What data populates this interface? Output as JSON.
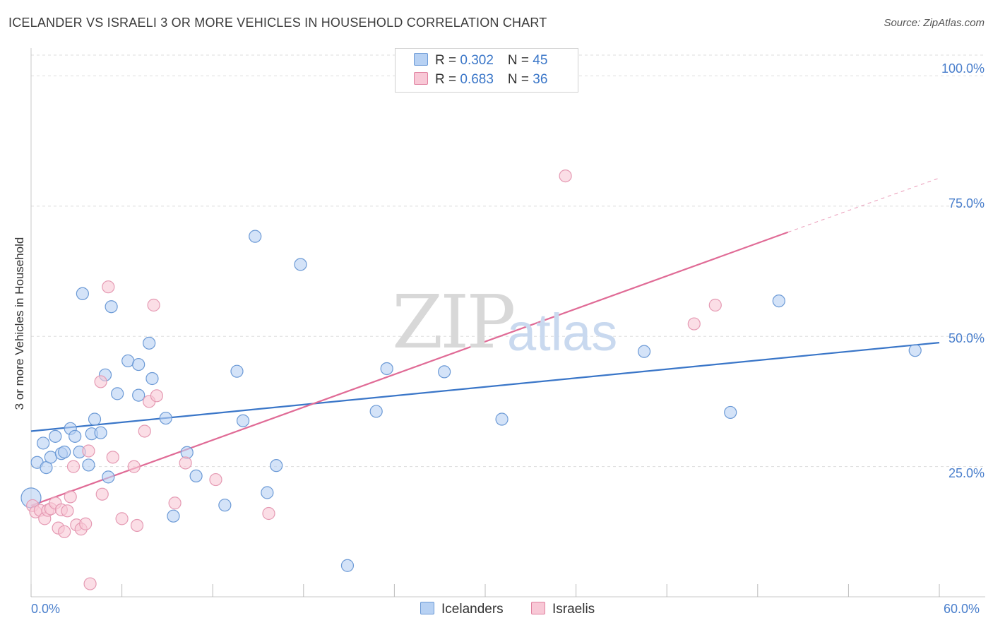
{
  "title": "ICELANDER VS ISRAELI 3 OR MORE VEHICLES IN HOUSEHOLD CORRELATION CHART",
  "source": "Source: ZipAtlas.com",
  "watermark": {
    "zip": "ZIP",
    "atlas": "atlas"
  },
  "legend": {
    "rows": [
      {
        "r_label": "R = ",
        "r_value": "0.302",
        "n_label": "N = ",
        "n_value": "45"
      },
      {
        "r_label": "R = ",
        "r_value": "0.683",
        "n_label": "N = ",
        "n_value": "36"
      }
    ]
  },
  "bottom_legend": {
    "blue": "Icelanders",
    "pink": "Israelis"
  },
  "colors": {
    "blue": "#3a76c8",
    "blue_fill": "#b7d1f3",
    "pink": "#e06b96",
    "pink_fill": "#f8c8d6",
    "grid": "#dddddd",
    "tick_text": "#4a7fcc"
  },
  "chart_data": {
    "type": "scatter",
    "title": "ICELANDER VS ISRAELI 3 OR MORE VEHICLES IN HOUSEHOLD CORRELATION CHART",
    "xlabel": "",
    "ylabel": "3 or more Vehicles in Household",
    "xlim": [
      0,
      60
    ],
    "ylim": [
      0,
      104
    ],
    "x_tick_labels": [
      "0.0%",
      "60.0%"
    ],
    "y_ticks": [
      25,
      50,
      75,
      100
    ],
    "y_tick_labels": [
      "25.0%",
      "50.0%",
      "75.0%",
      "100.0%"
    ],
    "grid": true,
    "legend_position": "top-center",
    "series": [
      {
        "name": "Icelanders",
        "r": 0.302,
        "n": 45,
        "trend": {
          "x0": 0,
          "y0": 31.8,
          "x1": 60,
          "y1": 48.8
        },
        "points": [
          [
            0.0,
            19.0
          ],
          [
            0.4,
            25.8
          ],
          [
            0.8,
            29.5
          ],
          [
            1.0,
            24.8
          ],
          [
            1.3,
            26.8
          ],
          [
            1.6,
            30.8
          ],
          [
            2.0,
            27.5
          ],
          [
            2.2,
            27.8
          ],
          [
            2.6,
            32.3
          ],
          [
            2.9,
            30.8
          ],
          [
            3.2,
            27.8
          ],
          [
            3.4,
            58.2
          ],
          [
            3.8,
            25.3
          ],
          [
            4.0,
            31.3
          ],
          [
            4.2,
            34.1
          ],
          [
            4.6,
            31.5
          ],
          [
            4.9,
            42.6
          ],
          [
            5.1,
            23.0
          ],
          [
            5.3,
            55.7
          ],
          [
            5.7,
            39.0
          ],
          [
            6.4,
            45.3
          ],
          [
            7.1,
            44.6
          ],
          [
            7.1,
            38.7
          ],
          [
            7.8,
            48.7
          ],
          [
            8.0,
            41.9
          ],
          [
            8.9,
            34.3
          ],
          [
            9.4,
            15.5
          ],
          [
            10.3,
            27.7
          ],
          [
            10.9,
            23.2
          ],
          [
            12.8,
            17.6
          ],
          [
            13.6,
            43.3
          ],
          [
            14.0,
            33.8
          ],
          [
            14.8,
            69.2
          ],
          [
            15.6,
            20.0
          ],
          [
            16.2,
            25.2
          ],
          [
            17.8,
            63.8
          ],
          [
            20.9,
            6.0
          ],
          [
            22.8,
            35.6
          ],
          [
            23.5,
            43.8
          ],
          [
            27.3,
            43.2
          ],
          [
            31.1,
            34.1
          ],
          [
            40.5,
            47.1
          ],
          [
            46.2,
            35.4
          ],
          [
            49.4,
            56.8
          ],
          [
            58.4,
            47.3
          ]
        ]
      },
      {
        "name": "Israelis",
        "r": 0.683,
        "n": 36,
        "trend": {
          "x0": 0,
          "y0": 17.5,
          "x1": 50,
          "y1": 70.0,
          "dashed_to_x": 60,
          "dashed_to_y": 80.4
        },
        "points": [
          [
            0.1,
            17.5
          ],
          [
            0.3,
            16.3
          ],
          [
            0.6,
            16.6
          ],
          [
            0.9,
            15.0
          ],
          [
            1.1,
            16.6
          ],
          [
            1.3,
            16.9
          ],
          [
            1.6,
            18.0
          ],
          [
            1.8,
            13.2
          ],
          [
            2.0,
            16.7
          ],
          [
            2.2,
            12.5
          ],
          [
            2.4,
            16.5
          ],
          [
            2.6,
            19.2
          ],
          [
            2.8,
            25.0
          ],
          [
            3.0,
            13.8
          ],
          [
            3.3,
            13.0
          ],
          [
            3.6,
            14.0
          ],
          [
            3.8,
            28.0
          ],
          [
            3.9,
            2.5
          ],
          [
            4.6,
            41.3
          ],
          [
            4.7,
            19.7
          ],
          [
            5.1,
            59.5
          ],
          [
            5.4,
            26.8
          ],
          [
            6.0,
            15.0
          ],
          [
            6.8,
            25.0
          ],
          [
            7.0,
            13.7
          ],
          [
            7.5,
            31.8
          ],
          [
            7.8,
            37.5
          ],
          [
            8.1,
            56.0
          ],
          [
            8.3,
            38.6
          ],
          [
            9.5,
            18.0
          ],
          [
            10.2,
            25.7
          ],
          [
            12.2,
            22.5
          ],
          [
            15.7,
            16.0
          ],
          [
            35.3,
            80.8
          ],
          [
            43.8,
            52.4
          ],
          [
            45.2,
            56.0
          ]
        ]
      }
    ]
  }
}
